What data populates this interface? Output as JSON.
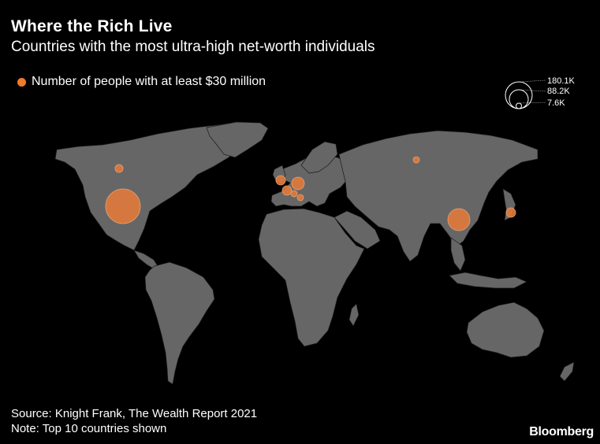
{
  "header": {
    "title": "Where the Rich Live",
    "subtitle": "Countries with the most ultra-high net-worth individuals"
  },
  "legend": {
    "series_label": "Number of people with at least $30 million",
    "size_values": [
      "180.1K",
      "88.2K",
      "7.6K"
    ]
  },
  "colors": {
    "bubble": "#f07a2a",
    "land": "#666666",
    "background": "#000000"
  },
  "footer": {
    "source": "Source: Knight Frank, The Wealth Report 2021",
    "note": "Note: Top 10 countries shown",
    "brand": "Bloomberg"
  }
}
